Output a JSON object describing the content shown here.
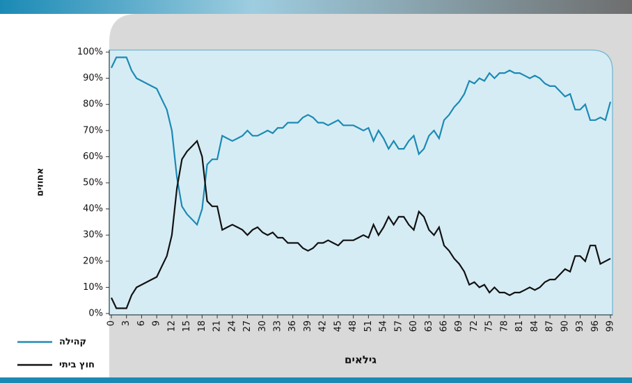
{
  "chart_data": {
    "type": "line",
    "ylabel": "אחוזים",
    "xlabel": "גילאים",
    "x": [
      0,
      1,
      2,
      3,
      4,
      5,
      6,
      7,
      8,
      9,
      10,
      11,
      12,
      13,
      14,
      15,
      16,
      17,
      18,
      19,
      20,
      21,
      22,
      23,
      24,
      25,
      26,
      27,
      28,
      29,
      30,
      31,
      32,
      33,
      34,
      35,
      36,
      37,
      38,
      39,
      40,
      41,
      42,
      43,
      44,
      45,
      46,
      47,
      48,
      49,
      50,
      51,
      52,
      53,
      54,
      55,
      56,
      57,
      58,
      59,
      60,
      61,
      62,
      63,
      64,
      65,
      66,
      67,
      68,
      69,
      70,
      71,
      72,
      73,
      74,
      75,
      76,
      77,
      78,
      79,
      80,
      81,
      82,
      83,
      84,
      85,
      86,
      87,
      88,
      89,
      90,
      91,
      92,
      93,
      94,
      95,
      96,
      97,
      98,
      99
    ],
    "series": [
      {
        "name": "קהילה",
        "color": "#1a8ab5",
        "values": [
          94,
          98,
          98,
          98,
          93,
          90,
          89,
          88,
          87,
          86,
          82,
          78,
          70,
          52,
          41,
          38,
          36,
          34,
          40,
          57,
          59,
          59,
          68,
          67,
          66,
          67,
          68,
          70,
          68,
          68,
          69,
          70,
          69,
          71,
          71,
          73,
          73,
          73,
          75,
          76,
          75,
          73,
          73,
          72,
          73,
          74,
          72,
          72,
          72,
          71,
          70,
          71,
          66,
          70,
          67,
          63,
          66,
          63,
          63,
          66,
          68,
          61,
          63,
          68,
          70,
          67,
          74,
          76,
          79,
          81,
          84,
          89,
          88,
          90,
          89,
          92,
          90,
          92,
          92,
          93,
          92,
          92,
          91,
          90,
          91,
          90,
          88,
          87,
          87,
          85,
          83,
          84,
          78,
          78,
          80,
          74,
          74,
          75,
          74,
          81
        ]
      },
      {
        "name": "חוץ ביתי",
        "color": "#111111",
        "values": [
          6,
          2,
          2,
          2,
          7,
          10,
          11,
          12,
          13,
          14,
          18,
          22,
          30,
          48,
          59,
          62,
          64,
          66,
          60,
          43,
          41,
          41,
          32,
          33,
          34,
          33,
          32,
          30,
          32,
          33,
          31,
          30,
          31,
          29,
          29,
          27,
          27,
          27,
          25,
          24,
          25,
          27,
          27,
          28,
          27,
          26,
          28,
          28,
          28,
          29,
          30,
          29,
          34,
          30,
          33,
          37,
          34,
          37,
          37,
          34,
          32,
          39,
          37,
          32,
          30,
          33,
          26,
          24,
          21,
          19,
          16,
          11,
          12,
          10,
          11,
          8,
          10,
          8,
          8,
          7,
          8,
          8,
          9,
          10,
          9,
          10,
          12,
          13,
          13,
          15,
          17,
          16,
          22,
          22,
          20,
          26,
          26,
          19,
          20,
          21
        ]
      }
    ],
    "xlim": [
      0,
      99
    ],
    "xticks": [
      0,
      3,
      6,
      9,
      12,
      15,
      18,
      21,
      24,
      27,
      30,
      33,
      36,
      39,
      42,
      45,
      48,
      51,
      54,
      57,
      60,
      63,
      66,
      69,
      72,
      75,
      78,
      81,
      84,
      87,
      90,
      93,
      96,
      99
    ],
    "ylim": [
      0,
      100
    ],
    "yticks": [
      {
        "value": 0,
        "label": "0%"
      },
      {
        "value": 10,
        "label": "10%"
      },
      {
        "value": 20,
        "label": "20%"
      },
      {
        "value": 30,
        "label": "30%"
      },
      {
        "value": 40,
        "label": "40%"
      },
      {
        "value": 50,
        "label": "50%"
      },
      {
        "value": 60,
        "label": "60%"
      },
      {
        "value": 70,
        "label": "70%"
      },
      {
        "value": 80,
        "label": "80%"
      },
      {
        "value": 90,
        "label": "90%"
      },
      {
        "value": 100,
        "label": "100%"
      }
    ]
  }
}
